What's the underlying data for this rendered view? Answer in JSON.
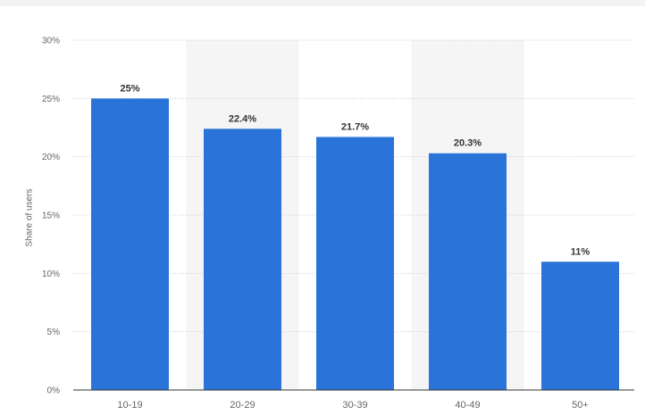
{
  "chart_data": {
    "type": "bar",
    "categories": [
      "10-19",
      "20-29",
      "30-39",
      "40-49",
      "50+"
    ],
    "values": [
      25,
      22.4,
      21.7,
      20.3,
      11
    ],
    "data_labels": [
      "25%",
      "22.4%",
      "21.7%",
      "20.3%",
      "11%"
    ],
    "title": "",
    "xlabel": "",
    "ylabel": "Share of users",
    "ylim": [
      0,
      30
    ],
    "yticks": [
      0,
      5,
      10,
      15,
      20,
      25,
      30
    ],
    "ytick_labels": [
      "0%",
      "5%",
      "10%",
      "15%",
      "20%",
      "25%",
      "30%"
    ],
    "grid": true,
    "legend": "none",
    "colors": {
      "bar": "#2a74d9",
      "band": "#f5f5f5",
      "grid": "#c9c9c9",
      "axis": "#333333",
      "tick_text": "#666666",
      "label_text": "#333333"
    }
  }
}
